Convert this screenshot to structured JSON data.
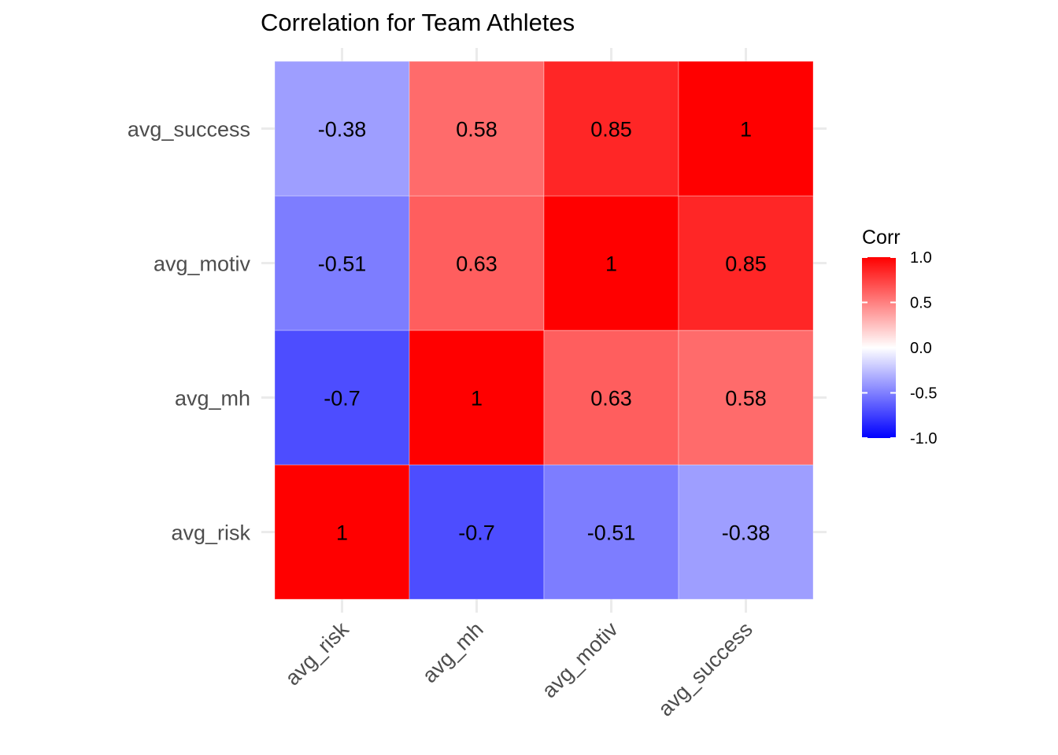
{
  "chart_data": {
    "type": "heatmap",
    "title": "Correlation for Team Athletes",
    "x_categories": [
      "avg_risk",
      "avg_mh",
      "avg_motiv",
      "avg_success"
    ],
    "y_categories": [
      "avg_risk",
      "avg_mh",
      "avg_motiv",
      "avg_success"
    ],
    "values": [
      [
        1,
        -0.7,
        -0.51,
        -0.38
      ],
      [
        -0.7,
        1,
        0.63,
        0.58
      ],
      [
        -0.51,
        0.63,
        1,
        0.85
      ],
      [
        -0.38,
        0.58,
        0.85,
        1
      ]
    ],
    "value_range": [
      -1,
      1
    ],
    "colors": {
      "low": "#0000ff",
      "mid": "#ffffff",
      "high": "#ff0000"
    },
    "legend": {
      "title": "Corr",
      "ticks": [
        "1.0",
        "0.5",
        "0.0",
        "-0.5",
        "-1.0"
      ],
      "tick_values": [
        1.0,
        0.5,
        0.0,
        -0.5,
        -1.0
      ],
      "position": "right"
    },
    "grid": true
  }
}
